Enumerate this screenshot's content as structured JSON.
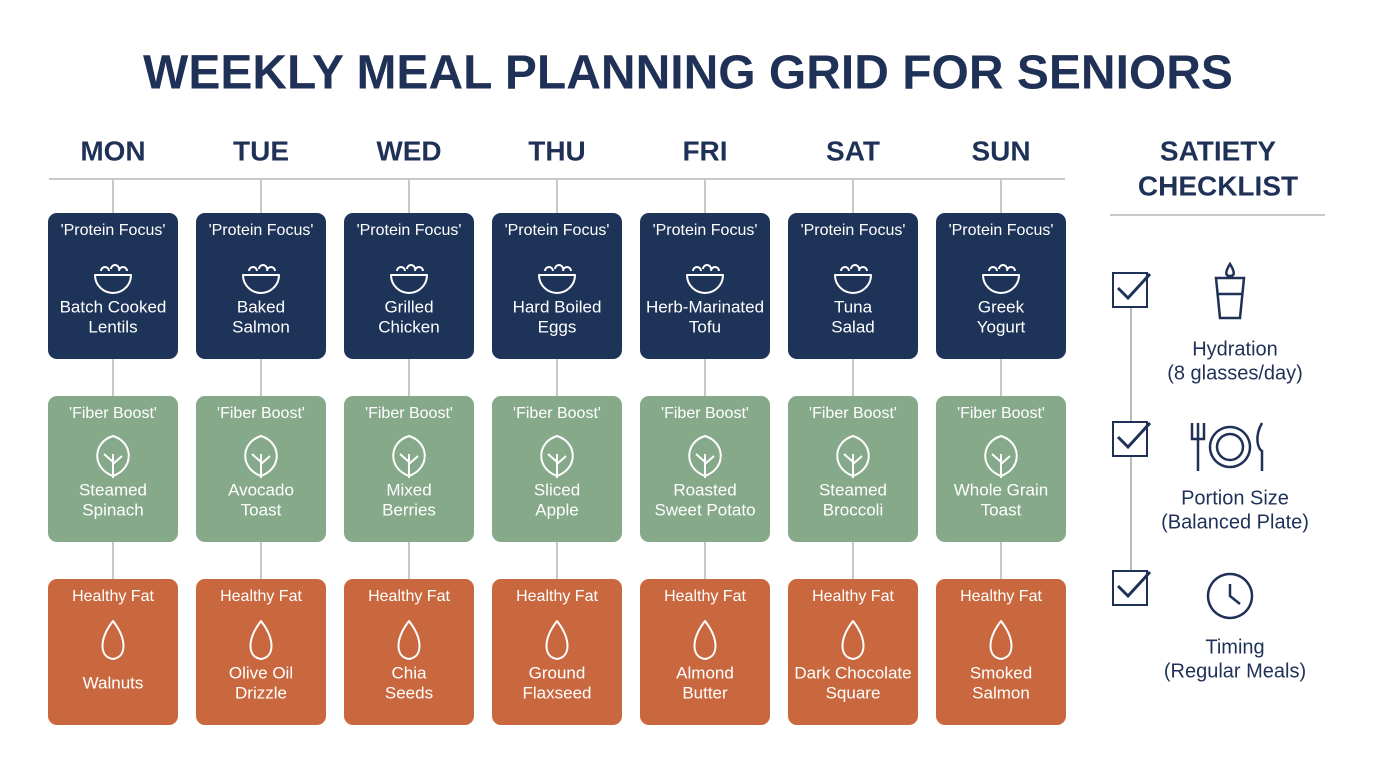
{
  "header": {
    "title": "WEEKLY MEAL PLANNING GRID FOR SENIORS"
  },
  "days": [
    {
      "day": "MON",
      "meals": [
        {
          "tag": "'Protein Focus'",
          "name": [
            "Batch Cooked",
            "Lentils"
          ]
        },
        {
          "tag": "'Fiber Boost'",
          "name": [
            "Steamed",
            "Spinach"
          ]
        },
        {
          "tag": "Healthy Fat",
          "name": [
            "Walnuts"
          ]
        }
      ]
    },
    {
      "day": "TUE",
      "meals": [
        {
          "tag": "'Protein Focus'",
          "name": [
            "Baked",
            "Salmon"
          ]
        },
        {
          "tag": "'Fiber Boost'",
          "name": [
            "Avocado",
            "Toast"
          ]
        },
        {
          "tag": "Healthy Fat",
          "name": [
            "Olive Oil",
            "Drizzle"
          ]
        }
      ]
    },
    {
      "day": "WED",
      "meals": [
        {
          "tag": "'Protein Focus'",
          "name": [
            "Grilled",
            "Chicken"
          ]
        },
        {
          "tag": "'Fiber Boost'",
          "name": [
            "Mixed",
            "Berries"
          ]
        },
        {
          "tag": "Healthy Fat",
          "name": [
            "Chia",
            "Seeds"
          ]
        }
      ]
    },
    {
      "day": "THU",
      "meals": [
        {
          "tag": "'Protein Focus'",
          "name": [
            "Hard Boiled",
            "Eggs"
          ]
        },
        {
          "tag": "'Fiber Boost'",
          "name": [
            "Sliced",
            "Apple"
          ]
        },
        {
          "tag": "Healthy Fat",
          "name": [
            "Ground",
            "Flaxseed"
          ]
        }
      ]
    },
    {
      "day": "FRI",
      "meals": [
        {
          "tag": "'Protein Focus'",
          "name": [
            "Herb-Marinated",
            "Tofu"
          ]
        },
        {
          "tag": "'Fiber Boost'",
          "name": [
            "Roasted",
            "Sweet Potato"
          ]
        },
        {
          "tag": "Healthy Fat",
          "name": [
            "Almond",
            "Butter"
          ]
        }
      ]
    },
    {
      "day": "SAT",
      "meals": [
        {
          "tag": "'Protein Focus'",
          "name": [
            "Tuna",
            "Salad"
          ]
        },
        {
          "tag": "'Fiber Boost'",
          "name": [
            "Steamed",
            "Broccoli"
          ]
        },
        {
          "tag": "Healthy Fat",
          "name": [
            "Dark Chocolate",
            "Square"
          ]
        }
      ]
    },
    {
      "day": "SUN",
      "meals": [
        {
          "tag": "'Protein Focus'",
          "name": [
            "Greek",
            "Yogurt"
          ]
        },
        {
          "tag": "'Fiber Boost'",
          "name": [
            "Whole Grain",
            "Toast"
          ]
        },
        {
          "tag": "Healthy Fat",
          "name": [
            "Smoked",
            "Salmon"
          ]
        }
      ]
    }
  ],
  "checklist": {
    "title": [
      "SATIETY",
      "CHECKLIST"
    ],
    "items": [
      {
        "label": "Hydration",
        "detail": "(8 glasses/day)"
      },
      {
        "label": "Portion Size",
        "detail": "(Balanced Plate)"
      },
      {
        "label": "Timing",
        "detail": "(Regular Meals)"
      }
    ]
  }
}
